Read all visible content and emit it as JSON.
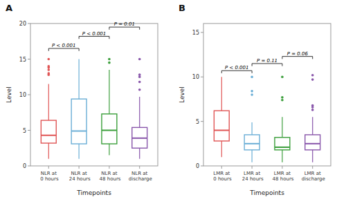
{
  "chart_data": [
    {
      "type": "box",
      "title": "A",
      "xlabel": "Timepoints",
      "ylabel": "Level",
      "ylim": [
        0,
        20
      ],
      "yticks": [
        0,
        5,
        10,
        15,
        20
      ],
      "grid": false,
      "categories": [
        "NLR at 0 hours",
        "NLR at 24 hours",
        "NLR at 48 hours",
        "NLR at discharge"
      ],
      "colors": [
        "#e05555",
        "#6aaed6",
        "#3a9e3a",
        "#8855aa"
      ],
      "boxes": [
        {
          "q1": 3.2,
          "median": 4.3,
          "q3": 6.4,
          "whislo": 1.0,
          "whishi": 11.5
        },
        {
          "q1": 3.1,
          "median": 4.9,
          "q3": 9.4,
          "whislo": 1.0,
          "whishi": 15.0
        },
        {
          "q1": 3.1,
          "median": 5.0,
          "q3": 7.3,
          "whislo": 1.5,
          "whishi": 13.5
        },
        {
          "q1": 2.5,
          "median": 3.9,
          "q3": 5.4,
          "whislo": 1.0,
          "whishi": 9.7
        }
      ],
      "outliers": [
        [
          15.0,
          14.0,
          13.8,
          13.5,
          13.0,
          12.8
        ],
        [],
        [
          15.0,
          14.5
        ],
        [
          15.0,
          12.8,
          12.5,
          11.8,
          10.7
        ]
      ],
      "annotations": [
        {
          "from": "NLR at 0 hours",
          "to": "NLR at 24 hours",
          "y": 16.5,
          "label": "P < 0.001"
        },
        {
          "from": "NLR at 24 hours",
          "to": "NLR at 48 hours",
          "y": 18.2,
          "label": "P < 0.001"
        },
        {
          "from": "NLR at 48 hours",
          "to": "NLR at discharge",
          "y": 19.5,
          "label": "P = 0.01"
        }
      ]
    },
    {
      "type": "box",
      "title": "B",
      "xlabel": "Timepoints",
      "ylabel": "Level",
      "ylim": [
        0,
        16
      ],
      "yticks": [
        0,
        5,
        10,
        15
      ],
      "grid": false,
      "categories": [
        "LMR at 0 hours",
        "LMR at 24 hours",
        "LMR at 48 hours",
        "LMR at discharge"
      ],
      "colors": [
        "#e05555",
        "#6aaed6",
        "#3a9e3a",
        "#8855aa"
      ],
      "boxes": [
        {
          "q1": 2.8,
          "median": 4.0,
          "q3": 6.2,
          "whislo": 1.0,
          "whishi": 10.0
        },
        {
          "q1": 1.8,
          "median": 2.5,
          "q3": 3.5,
          "whislo": 0.4,
          "whishi": 4.9
        },
        {
          "q1": 1.8,
          "median": 2.1,
          "q3": 3.2,
          "whislo": 0.4,
          "whishi": 5.5
        },
        {
          "q1": 1.8,
          "median": 2.5,
          "q3": 3.5,
          "whislo": 0.4,
          "whishi": 5.5
        }
      ],
      "outliers": [
        [],
        [
          10.0,
          8.4,
          8.0
        ],
        [
          10.0,
          7.7,
          7.4
        ],
        [
          10.2,
          9.7,
          6.8,
          6.6,
          6.3
        ]
      ],
      "annotations": [
        {
          "from": "LMR at 0 hours",
          "to": "LMR at 24 hours",
          "y": 10.7,
          "label": "P < 0.001"
        },
        {
          "from": "LMR at 24 hours",
          "to": "LMR at 48 hours",
          "y": 11.5,
          "label": "P = 0.11"
        },
        {
          "from": "LMR at 48 hours",
          "to": "LMR at discharge",
          "y": 12.3,
          "label": "P = 0.06"
        }
      ]
    }
  ]
}
